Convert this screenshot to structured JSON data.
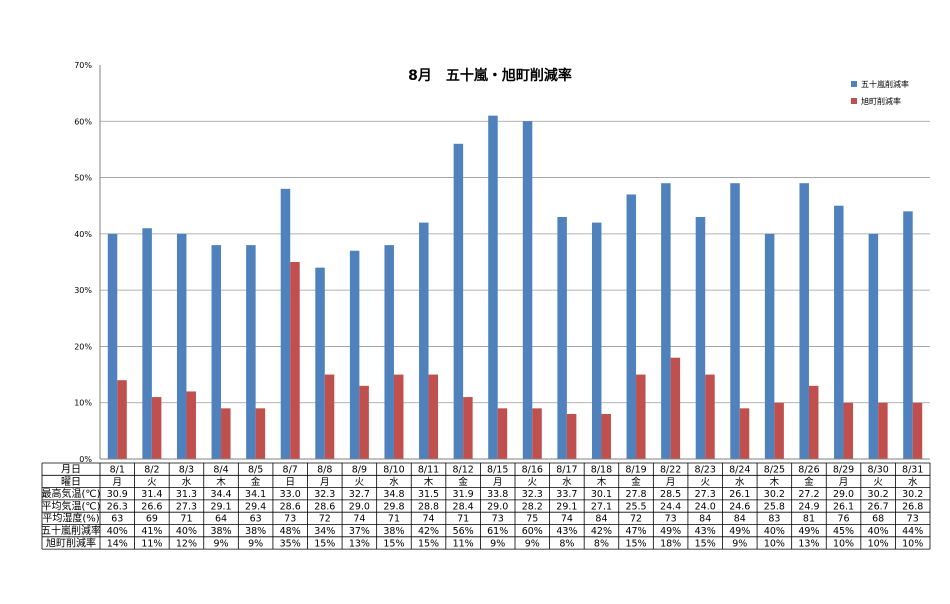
{
  "chart_data": {
    "type": "bar",
    "title": "8月　五十嵐・旭町削減率",
    "categories": [
      "8/1",
      "8/2",
      "8/3",
      "8/4",
      "8/5",
      "8/7",
      "8/8",
      "8/9",
      "8/10",
      "8/11",
      "8/12",
      "8/15",
      "8/16",
      "8/17",
      "8/18",
      "8/19",
      "8/22",
      "8/23",
      "8/24",
      "8/25",
      "8/26",
      "8/29",
      "8/30",
      "8/31"
    ],
    "ylim": [
      0,
      70
    ],
    "yticks": [
      "0%",
      "10%",
      "20%",
      "30%",
      "40%",
      "50%",
      "60%",
      "70%"
    ],
    "grid": true,
    "legend_position": "top-right",
    "series": [
      {
        "name": "五十嵐削減率",
        "color": "#4f81bd",
        "values": [
          40,
          41,
          40,
          38,
          38,
          48,
          34,
          37,
          38,
          42,
          56,
          61,
          60,
          43,
          42,
          47,
          49,
          43,
          49,
          40,
          49,
          45,
          40,
          44
        ]
      },
      {
        "name": "旭町削減率",
        "color": "#c0504d",
        "values": [
          14,
          11,
          12,
          9,
          9,
          35,
          15,
          13,
          15,
          15,
          11,
          9,
          9,
          8,
          8,
          15,
          18,
          15,
          9,
          10,
          13,
          10,
          10,
          10
        ]
      }
    ],
    "table": {
      "rows": [
        {
          "label": "月日",
          "values": [
            "8/1",
            "8/2",
            "8/3",
            "8/4",
            "8/5",
            "8/7",
            "8/8",
            "8/9",
            "8/10",
            "8/11",
            "8/12",
            "8/15",
            "8/16",
            "8/17",
            "8/18",
            "8/19",
            "8/22",
            "8/23",
            "8/24",
            "8/25",
            "8/26",
            "8/29",
            "8/30",
            "8/31"
          ]
        },
        {
          "label": "曜日",
          "values": [
            "月",
            "火",
            "水",
            "木",
            "金",
            "日",
            "月",
            "火",
            "水",
            "木",
            "金",
            "月",
            "火",
            "水",
            "木",
            "金",
            "月",
            "火",
            "水",
            "木",
            "金",
            "月",
            "火",
            "水"
          ]
        },
        {
          "label": "最高気温(℃)",
          "values": [
            "30.9",
            "31.4",
            "31.3",
            "34.4",
            "34.1",
            "33.0",
            "32.3",
            "32.7",
            "34.8",
            "31.5",
            "31.9",
            "33.8",
            "32.3",
            "33.7",
            "30.1",
            "27.8",
            "28.5",
            "27.3",
            "26.1",
            "30.2",
            "27.2",
            "29.0",
            "30.2",
            "30.2"
          ]
        },
        {
          "label": "平均気温(℃)",
          "values": [
            "26.3",
            "26.6",
            "27.3",
            "29.1",
            "29.4",
            "28.6",
            "28.6",
            "29.0",
            "29.8",
            "28.8",
            "28.4",
            "29.0",
            "28.2",
            "29.1",
            "27.1",
            "25.5",
            "24.4",
            "24.0",
            "24.6",
            "25.8",
            "24.9",
            "26.1",
            "26.7",
            "26.8"
          ]
        },
        {
          "label": "平均湿度(%)",
          "values": [
            "63",
            "69",
            "71",
            "64",
            "63",
            "73",
            "72",
            "74",
            "71",
            "74",
            "71",
            "73",
            "75",
            "74",
            "84",
            "72",
            "73",
            "84",
            "84",
            "83",
            "81",
            "76",
            "68",
            "73"
          ]
        },
        {
          "label": "五十嵐削減率",
          "values": [
            "40%",
            "41%",
            "40%",
            "38%",
            "38%",
            "48%",
            "34%",
            "37%",
            "38%",
            "42%",
            "56%",
            "61%",
            "60%",
            "43%",
            "42%",
            "47%",
            "49%",
            "43%",
            "49%",
            "40%",
            "49%",
            "45%",
            "40%",
            "44%"
          ]
        },
        {
          "label": "旭町削減率",
          "values": [
            "14%",
            "11%",
            "12%",
            "9%",
            "9%",
            "35%",
            "15%",
            "13%",
            "15%",
            "15%",
            "11%",
            "9%",
            "9%",
            "8%",
            "8%",
            "15%",
            "18%",
            "15%",
            "9%",
            "10%",
            "13%",
            "10%",
            "10%",
            "10%"
          ]
        }
      ]
    }
  }
}
